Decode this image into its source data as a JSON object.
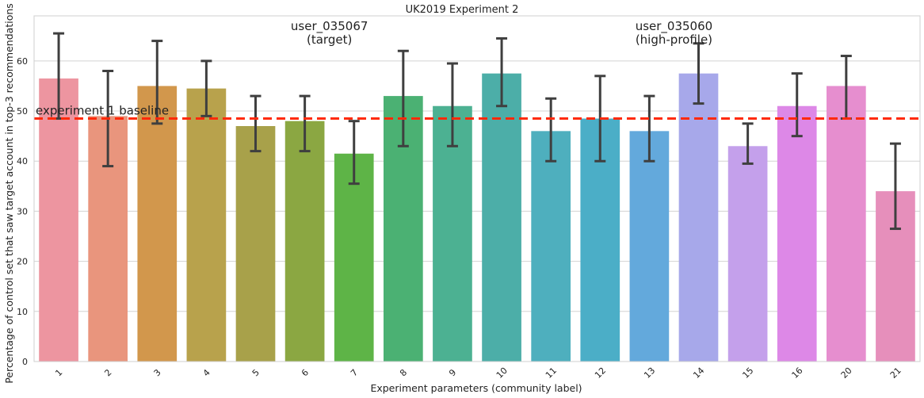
{
  "chart_data": {
    "type": "bar",
    "title": "UK2019 Experiment 2",
    "xlabel": "Experiment parameters (community label)",
    "ylabel": "Percentage of control set that saw target account in top-3 recommendations",
    "ylim": [
      0,
      69
    ],
    "yticks": [
      0,
      10,
      20,
      30,
      40,
      50,
      60
    ],
    "grid": "horizontal",
    "categories": [
      "1",
      "2",
      "3",
      "4",
      "5",
      "6",
      "7",
      "8",
      "9",
      "10",
      "11",
      "12",
      "13",
      "14",
      "15",
      "16",
      "20",
      "21"
    ],
    "values": [
      56.5,
      49.0,
      55.0,
      54.5,
      47.0,
      48.0,
      41.5,
      53.0,
      51.0,
      57.5,
      46.0,
      48.5,
      46.0,
      57.5,
      43.0,
      51.0,
      55.0,
      34.0
    ],
    "error_low": [
      48.5,
      39.0,
      47.5,
      49.0,
      42.0,
      42.0,
      35.5,
      43.0,
      43.0,
      51.0,
      40.0,
      40.0,
      40.0,
      51.5,
      39.5,
      45.0,
      48.5,
      26.5
    ],
    "error_high": [
      65.5,
      58.0,
      64.0,
      60.0,
      53.0,
      53.0,
      48.0,
      62.0,
      59.5,
      64.5,
      52.5,
      57.0,
      53.0,
      63.5,
      47.5,
      57.5,
      61.0,
      43.5
    ],
    "colors": [
      "#ed95a0",
      "#e9957d",
      "#d2974c",
      "#b8a24c",
      "#a8a14a",
      "#8ba742",
      "#5eb447",
      "#4bb173",
      "#4cb192",
      "#4caea8",
      "#4eafbe",
      "#4baec7",
      "#63a9dc",
      "#a7a8ea",
      "#c4a0eb",
      "#dd88e7",
      "#e68ecf",
      "#e68fbb"
    ],
    "baseline": {
      "value": 48.5,
      "label": "experiment 1 baseline",
      "color": "#ff2a0a"
    },
    "annotations": [
      {
        "lines": [
          "user_035067",
          "(target)"
        ],
        "x_category": "6"
      },
      {
        "lines": [
          "user_035060",
          "(high-profile)"
        ],
        "x_category": "13"
      }
    ]
  }
}
